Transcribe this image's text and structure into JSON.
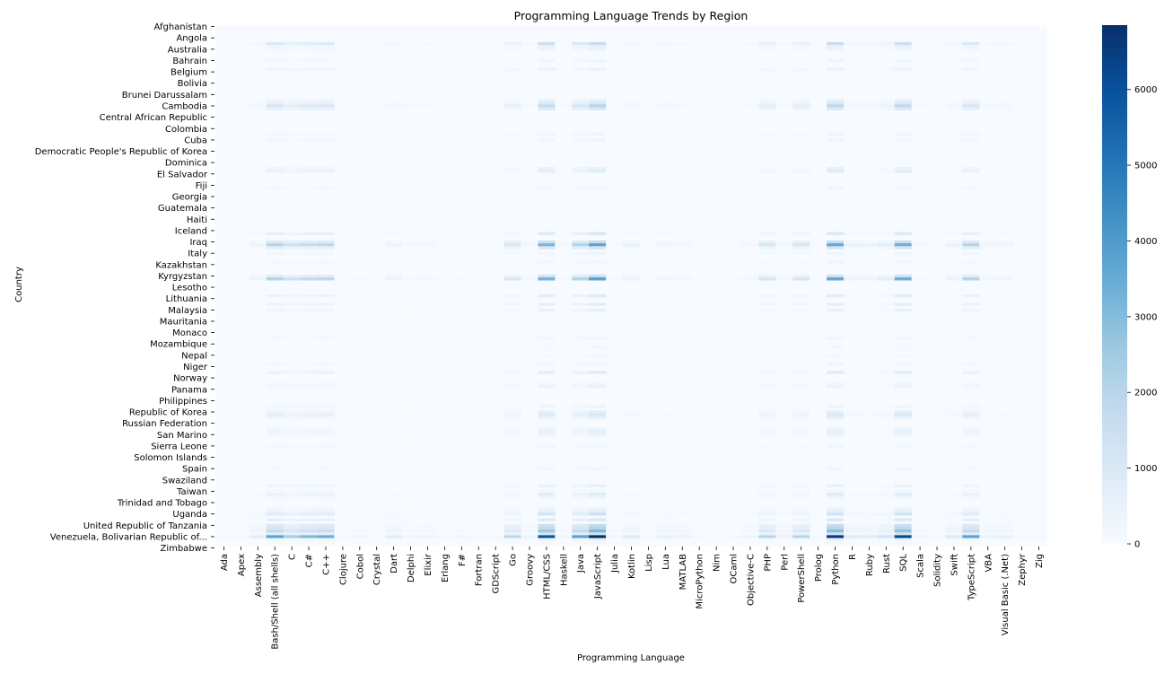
{
  "chart_data": {
    "type": "heatmap",
    "title": "Programming Language Trends by Region",
    "xlabel": "Programming Language",
    "ylabel": "Country",
    "colormap": "Blues",
    "colors": {
      "low": "#f7fbff",
      "high": "#08306b"
    },
    "x_tick_labels": [
      "Ada",
      "Apex",
      "Assembly",
      "Bash/Shell (all shells)",
      "C",
      "C#",
      "C++",
      "Clojure",
      "Cobol",
      "Crystal",
      "Dart",
      "Delphi",
      "Elixir",
      "Erlang",
      "F#",
      "Fortran",
      "GDScript",
      "Go",
      "Groovy",
      "HTML/CSS",
      "Haskell",
      "Java",
      "JavaScript",
      "Julia",
      "Kotlin",
      "Lisp",
      "Lua",
      "MATLAB",
      "MicroPython",
      "Nim",
      "OCaml",
      "Objective-C",
      "PHP",
      "Perl",
      "PowerShell",
      "Prolog",
      "Python",
      "R",
      "Ruby",
      "Rust",
      "SQL",
      "Scala",
      "Solidity",
      "Swift",
      "TypeScript",
      "VBA",
      "Visual Basic (.Net)",
      "Zephyr",
      "Zig"
    ],
    "y_tick_labels": [
      "Afghanistan",
      "Angola",
      "Australia",
      "Bahrain",
      "Belgium",
      "Bolivia",
      "Brunei Darussalam",
      "Cambodia",
      "Central African Republic",
      "Colombia",
      "Cuba",
      "Democratic People's Republic of Korea",
      "Dominica",
      "El Salvador",
      "Fiji",
      "Georgia",
      "Guatemala",
      "Haiti",
      "Iceland",
      "Iraq",
      "Italy",
      "Kazakhstan",
      "Kyrgyzstan",
      "Lesotho",
      "Lithuania",
      "Malaysia",
      "Mauritania",
      "Monaco",
      "Mozambique",
      "Nepal",
      "Niger",
      "Norway",
      "Panama",
      "Philippines",
      "Republic of Korea",
      "Russian Federation",
      "San Marino",
      "Sierra Leone",
      "Solomon Islands",
      "Spain",
      "Swaziland",
      "Taiwan",
      "Trinidad and Tobago",
      "Uganda",
      "United Republic of Tanzania",
      "Venezuela, Bolivarian Republic of...",
      "Zimbabwe"
    ],
    "colorbar": {
      "min": 0,
      "max": 6850,
      "ticks": [
        0,
        1000,
        2000,
        3000,
        4000,
        5000,
        6000
      ]
    },
    "rows": 184,
    "columns": 49,
    "row_weights": {
      "6": 0.25,
      "7": 0.08,
      "8": 0.06,
      "12": 0.05,
      "15": 0.07,
      "26": 0.08,
      "27": 0.15,
      "28": 0.3,
      "29": 0.15,
      "38": 0.05,
      "40": 0.05,
      "50": 0.08,
      "51": 0.12,
      "57": 0.04,
      "73": 0.15,
      "76": 0.25,
      "77": 0.55,
      "78": 0.18,
      "80": 0.05,
      "83": 0.04,
      "88": 0.2,
      "89": 0.55,
      "95": 0.12,
      "98": 0.1,
      "100": 0.08,
      "110": 0.04,
      "113": 0.03,
      "116": 0.03,
      "119": 0.04,
      "122": 0.12,
      "126": 0.04,
      "127": 0.07,
      "134": 0.06,
      "136": 0.1,
      "137": 0.15,
      "138": 0.08,
      "142": 0.06,
      "143": 0.1,
      "144": 0.06,
      "148": 0.04,
      "156": 0.04,
      "162": 0.08,
      "164": 0.04,
      "165": 0.12,
      "166": 0.06,
      "170": 0.05,
      "171": 0.1,
      "172": 0.2,
      "174": 0.15,
      "176": 0.25,
      "177": 0.3,
      "178": 0.45,
      "179": 0.2,
      "180": 1.0,
      "181": 0.06,
      "182": 0.03
    },
    "column_weights": [
      0.02,
      0.02,
      0.1,
      0.55,
      0.35,
      0.45,
      0.5,
      0.02,
      0.03,
      0.01,
      0.1,
      0.04,
      0.05,
      0.02,
      0.03,
      0.02,
      0.02,
      0.28,
      0.05,
      0.85,
      0.04,
      0.55,
      1.0,
      0.03,
      0.12,
      0.02,
      0.08,
      0.06,
      0.02,
      0.01,
      0.02,
      0.05,
      0.3,
      0.06,
      0.3,
      0.02,
      0.95,
      0.12,
      0.1,
      0.18,
      0.9,
      0.04,
      0.02,
      0.12,
      0.55,
      0.07,
      0.08,
      0.02,
      0.02
    ]
  }
}
